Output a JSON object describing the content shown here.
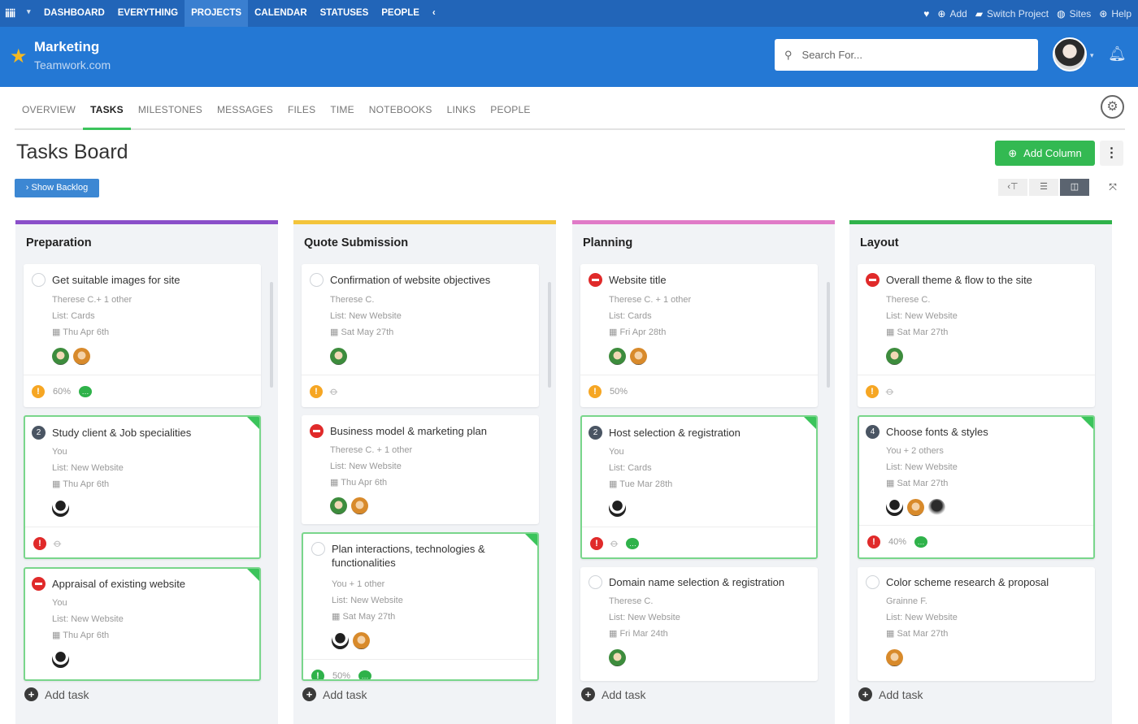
{
  "topnav": {
    "links": [
      "DASHBOARD",
      "EVERYTHING",
      "PROJECTS",
      "CALENDAR",
      "STATUSES",
      "PEOPLE"
    ],
    "active": "PROJECTS",
    "right": {
      "add": "Add",
      "switch": "Switch Project",
      "sites": "Sites",
      "help": "Help"
    }
  },
  "project": {
    "name": "Marketing",
    "site": "Teamwork.com"
  },
  "search": {
    "placeholder": "Search For..."
  },
  "tabs": [
    "OVERVIEW",
    "TASKS",
    "MILESTONES",
    "MESSAGES",
    "FILES",
    "TIME",
    "NOTEBOOKS",
    "LINKS",
    "PEOPLE"
  ],
  "active_tab": "TASKS",
  "page": {
    "title": "Tasks Board",
    "add_column": "Add Column",
    "show_backlog": "› Show Backlog"
  },
  "colors": {
    "preparation": "#8a4fc9",
    "quote": "#f3c43b",
    "planning": "#e07ac7",
    "layout": "#2fb24a",
    "accent": "#2478d4",
    "green": "#33b952"
  },
  "columns": [
    {
      "name": "Preparation",
      "add_task": "Add task",
      "cards": [
        {
          "title": "Get suitable images for site",
          "assignee": "Therese C.+ 1 other",
          "list": "List: Cards",
          "date": "Thu Apr 6th",
          "footer": "60%"
        },
        {
          "title": "Study client & Job specialities",
          "assignee": "You",
          "list": "List: New Website",
          "date": "Thu Apr 6th",
          "badge": "2"
        },
        {
          "title": "Appraisal of existing website",
          "assignee": "You",
          "list": "List: New Website",
          "date": "Thu Apr 6th"
        }
      ]
    },
    {
      "name": "Quote Submission",
      "add_task": "Add task",
      "cards": [
        {
          "title": "Confirmation of website objectives",
          "assignee": "Therese C.",
          "list": "List: New Website",
          "date": "Sat May 27th"
        },
        {
          "title": "Business model & marketing plan",
          "assignee": "Therese C. + 1 other",
          "list": "List: New Website",
          "date": "Thu Apr 6th"
        },
        {
          "title": "Plan interactions, technologies & functionalities",
          "assignee": "You + 1 other",
          "list": "List: New Website",
          "date": "Sat May 27th",
          "footer": "50%"
        }
      ]
    },
    {
      "name": "Planning",
      "add_task": "Add task",
      "cards": [
        {
          "title": "Website title",
          "assignee": "Therese C. + 1 other",
          "list": "List: Cards",
          "date": "Fri Apr 28th",
          "footer": "50%"
        },
        {
          "title": "Host selection & registration",
          "assignee": "You",
          "list": "List: Cards",
          "date": "Tue Mar 28th",
          "badge": "2"
        },
        {
          "title": "Domain name selection & registration",
          "assignee": "Therese C.",
          "list": "List: New Website",
          "date": "Fri Mar 24th"
        }
      ]
    },
    {
      "name": "Layout",
      "add_task": "Add task",
      "cards": [
        {
          "title": "Overall theme & flow to the site",
          "assignee": "Therese C.",
          "list": "List: New Website",
          "date": "Sat Mar 27th"
        },
        {
          "title": "Choose fonts & styles",
          "assignee": "You + 2 others",
          "list": "List: New Website",
          "date": "Sat Mar 27th",
          "footer": "40%",
          "badge": "4"
        },
        {
          "title": "Color scheme research & proposal",
          "assignee": "Grainne F.",
          "list": "List: New Website",
          "date": "Sat Mar 27th"
        }
      ]
    }
  ]
}
